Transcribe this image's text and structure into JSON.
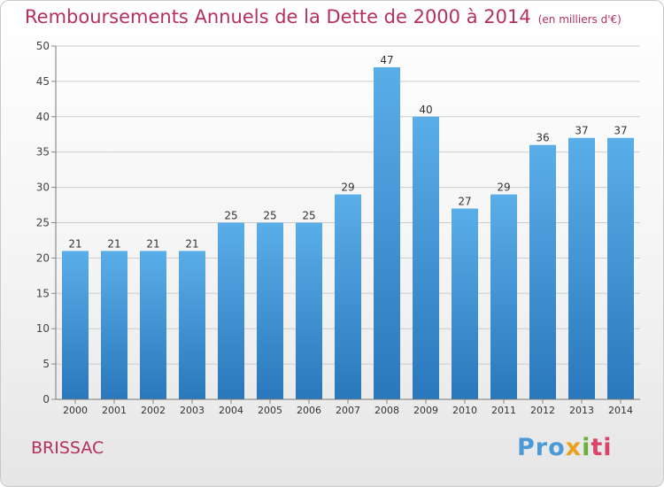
{
  "title": "Remboursements Annuels de la Dette de 2000 à 2014",
  "subtitle": "(en milliers d'€)",
  "city": "BRISSAC",
  "logo": {
    "p1": "Pro",
    "p2": "x",
    "p3": "i",
    "p4": "ti"
  },
  "colors": {
    "title": "#b5305c",
    "bar_top": "#5aaee8",
    "bar_bottom": "#2a78bc",
    "grid": "#cccccc"
  },
  "chart_data": {
    "type": "bar",
    "categories": [
      "2000",
      "2001",
      "2002",
      "2003",
      "2004",
      "2005",
      "2006",
      "2007",
      "2008",
      "2009",
      "2010",
      "2011",
      "2012",
      "2013",
      "2014"
    ],
    "values": [
      21,
      21,
      21,
      21,
      25,
      25,
      25,
      29,
      47,
      40,
      27,
      29,
      36,
      37,
      37
    ],
    "ylim": [
      0,
      50
    ],
    "yticks": [
      0,
      5,
      10,
      15,
      20,
      25,
      30,
      35,
      40,
      45,
      50
    ],
    "grid": true,
    "data_labels": true
  }
}
